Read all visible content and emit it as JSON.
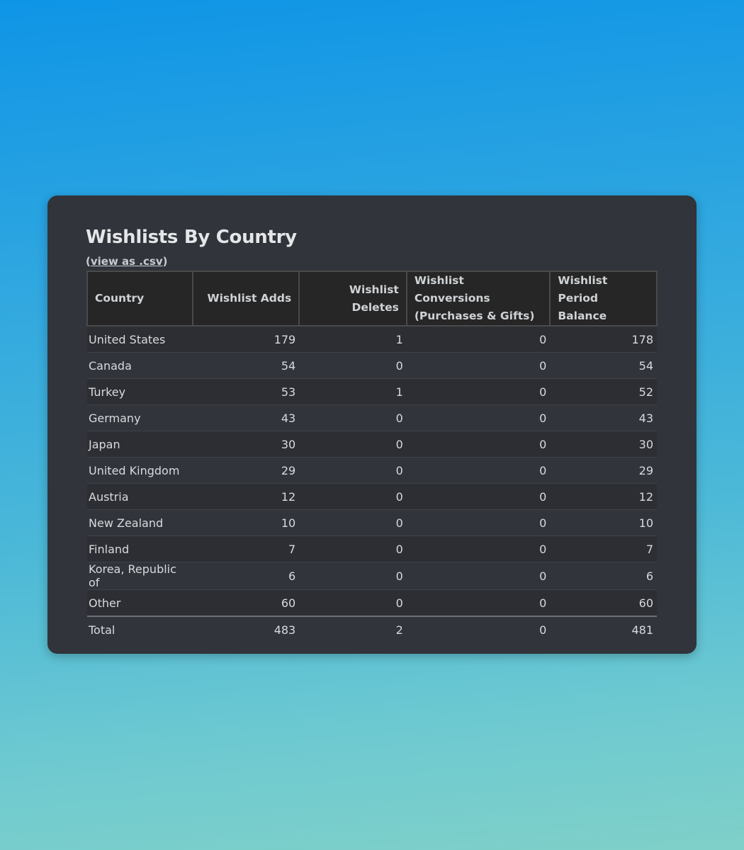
{
  "panel": {
    "title": "Wishlists By Country",
    "csv_prefix": "(",
    "csv_link": "view as .csv",
    "csv_suffix": ")"
  },
  "table": {
    "headers": {
      "country": "Country",
      "adds": "Wishlist Adds",
      "deletes": "Wishlist Deletes",
      "conversions": "Wishlist Conversions (Purchases & Gifts)",
      "balance": "Wishlist Period Balance"
    },
    "rows": [
      {
        "country": "United States",
        "adds": "179",
        "deletes": "1",
        "conversions": "0",
        "balance": "178"
      },
      {
        "country": "Canada",
        "adds": "54",
        "deletes": "0",
        "conversions": "0",
        "balance": "54"
      },
      {
        "country": "Turkey",
        "adds": "53",
        "deletes": "1",
        "conversions": "0",
        "balance": "52"
      },
      {
        "country": "Germany",
        "adds": "43",
        "deletes": "0",
        "conversions": "0",
        "balance": "43"
      },
      {
        "country": "Japan",
        "adds": "30",
        "deletes": "0",
        "conversions": "0",
        "balance": "30"
      },
      {
        "country": "United Kingdom",
        "adds": "29",
        "deletes": "0",
        "conversions": "0",
        "balance": "29"
      },
      {
        "country": "Austria",
        "adds": "12",
        "deletes": "0",
        "conversions": "0",
        "balance": "12"
      },
      {
        "country": "New Zealand",
        "adds": "10",
        "deletes": "0",
        "conversions": "0",
        "balance": "10"
      },
      {
        "country": "Finland",
        "adds": "7",
        "deletes": "0",
        "conversions": "0",
        "balance": "7"
      },
      {
        "country": "Korea, Republic of",
        "adds": "6",
        "deletes": "0",
        "conversions": "0",
        "balance": "6"
      },
      {
        "country": "Other",
        "adds": "60",
        "deletes": "0",
        "conversions": "0",
        "balance": "60"
      }
    ],
    "total": {
      "country": "Total",
      "adds": "483",
      "deletes": "2",
      "conversions": "0",
      "balance": "481"
    }
  }
}
